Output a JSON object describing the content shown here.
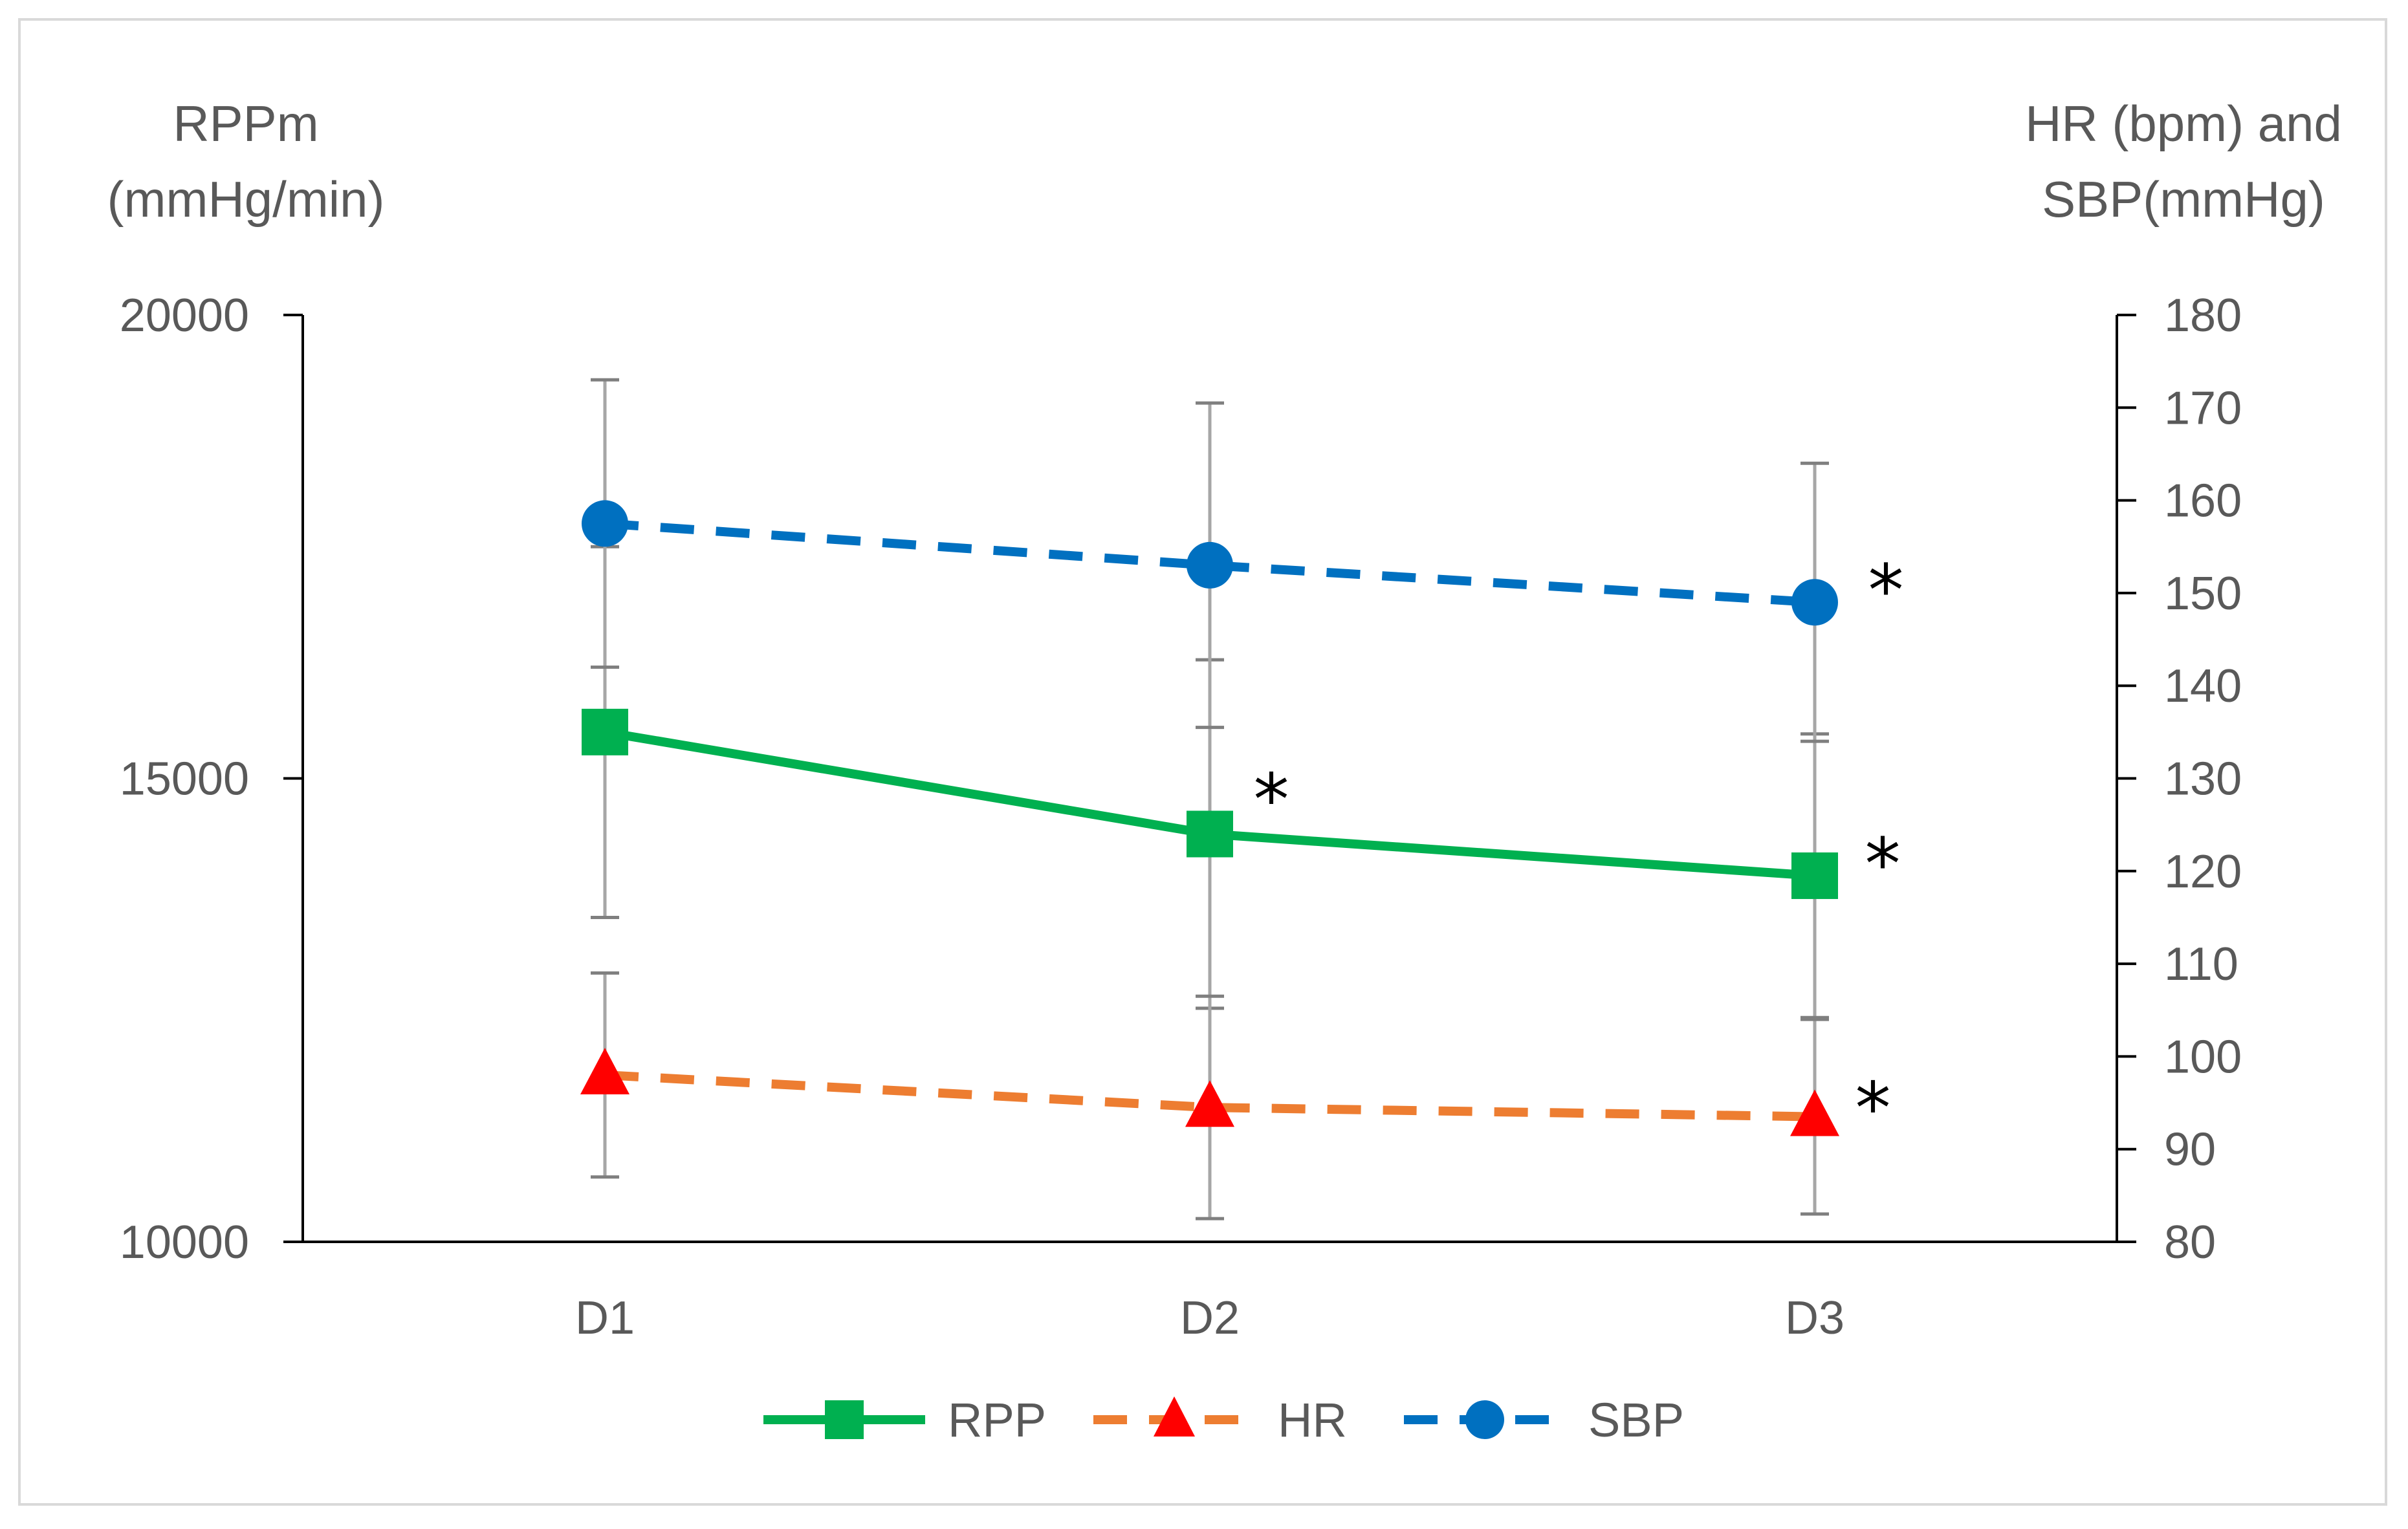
{
  "chart_data": {
    "type": "line",
    "categories": [
      "D1",
      "D2",
      "D3"
    ],
    "left_axis": {
      "title_lines": [
        "RPPm",
        "(mmHg/min)"
      ],
      "range": [
        10000,
        20000
      ],
      "ticks": [
        10000,
        15000,
        20000
      ],
      "tick_labels": [
        "10000",
        "15000",
        "20000"
      ]
    },
    "right_axis": {
      "title_lines": [
        "HR (bpm) and",
        "SBP(mmHg)"
      ],
      "range": [
        80,
        180
      ],
      "ticks": [
        80,
        90,
        100,
        110,
        120,
        130,
        140,
        150,
        160,
        170,
        180
      ],
      "tick_labels": [
        "80",
        "90",
        "100",
        "110",
        "120",
        "130",
        "140",
        "150",
        "160",
        "170",
        "180"
      ]
    },
    "series": [
      {
        "name": "RPP",
        "axis": "left",
        "color": "#00b050",
        "marker": "square",
        "dashed": false,
        "values": [
          15500,
          14400,
          13950
        ],
        "error": [
          2000,
          1880,
          1530
        ],
        "significant": [
          false,
          true,
          true
        ]
      },
      {
        "name": "HR",
        "axis": "right",
        "color": "#ed7d31",
        "marker_color": "#ff0000",
        "marker": "triangle",
        "dashed": true,
        "values": [
          98,
          94.5,
          93.5
        ],
        "error": [
          11,
          12,
          10.5
        ],
        "significant": [
          false,
          false,
          true
        ]
      },
      {
        "name": "SBP",
        "axis": "right",
        "color": "#0070c0",
        "marker": "circle",
        "dashed": true,
        "values": [
          157.5,
          153,
          149
        ],
        "error": [
          15.5,
          17.5,
          15
        ],
        "significant": [
          false,
          false,
          true
        ]
      }
    ],
    "significance_label": "*",
    "legend": [
      "RPP",
      "HR",
      "SBP"
    ],
    "legend_position": "bottom",
    "grid": false
  }
}
